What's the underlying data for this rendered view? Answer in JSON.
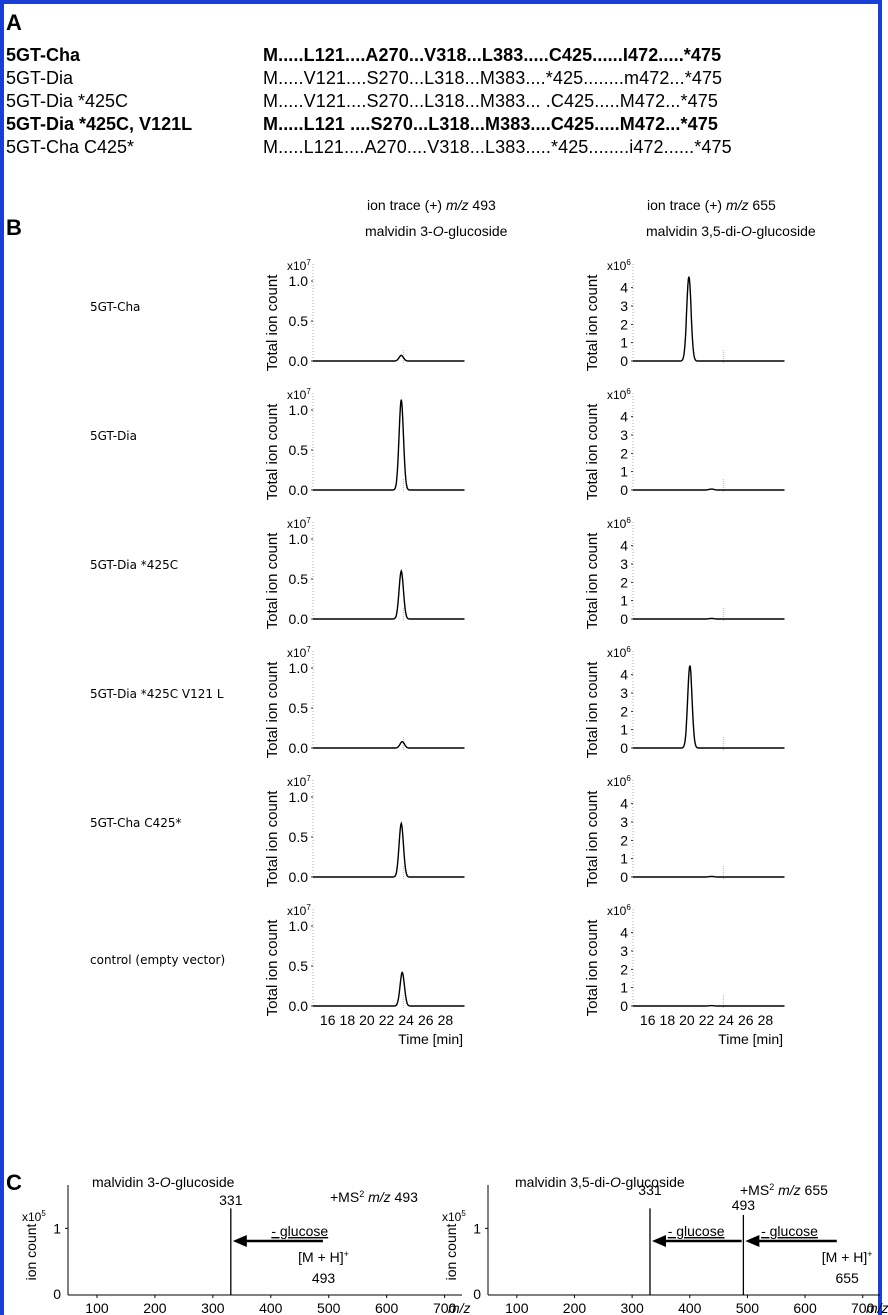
{
  "panel_labels": {
    "A": "A",
    "B": "B",
    "C": "C"
  },
  "table_A": {
    "rows": [
      {
        "name": "5GT-Cha",
        "sequence": "M.....L121....A270...V318...L383.....C425......I472.....*475",
        "bold": true
      },
      {
        "name": "5GT-Dia",
        "sequence": "M.....V121....S270...L318...M383....*425........m472...*475",
        "bold": false
      },
      {
        "name": "5GT-Dia *425C",
        "sequence": "M.....V121....S270...L318...M383... .C425.....M472...*475",
        "bold": false
      },
      {
        "name": "5GT-Dia *425C, V121L",
        "sequence": "M.....L121 ....S270...L318...M383....C425.....M472...*475",
        "bold": true
      },
      {
        "name": "5GT-Cha C425*",
        "sequence": "M.....L121....A270....V318...L383.....*425........i472......*475",
        "bold": false
      }
    ]
  },
  "panel_B": {
    "col1_header": {
      "line1": "ion trace (+) ",
      "mz": "m/z",
      "mzval": " 493",
      "line2a": "malvidin 3-",
      "O": "O",
      "line2b": "-glucoside"
    },
    "col2_header": {
      "line1": "ion trace (+) ",
      "mz": "m/z",
      "mzval": " 655",
      "line2a": "malvidin 3,5-di-",
      "O": "O",
      "line2b": "-glucoside"
    },
    "row_labels": [
      "5GT-Cha",
      "5GT-Dia",
      "5GT-Dia *425C",
      "5GT-Dia *425C V121 L",
      "5GT-Cha C425*",
      "control (empty vector)"
    ],
    "ylabel": "Total ion count",
    "xlabel": "Time [min]",
    "x_ticks": [
      "16",
      "18",
      "20",
      "22",
      "24",
      "26",
      "28"
    ],
    "left_exp": {
      "base": "x10",
      "exp": "7"
    },
    "right_exp": {
      "base": "x10",
      "exp": "6"
    },
    "left_yticks": [
      "0.0",
      "0.5",
      "1.0"
    ],
    "right_yticks": [
      "0",
      "1",
      "2",
      "3",
      "4"
    ]
  },
  "panel_C": {
    "left": {
      "title_a": "malvidin 3-",
      "title_O": "O",
      "title_b": "-glucoside",
      "ms": "+MS",
      "ms_sup": "2",
      "mz": " m/z",
      "mzval": " 493",
      "peak_label": "331",
      "arrow_label": "- glucose",
      "ion_label": "[M + H]",
      "ion_sup": "+",
      "ion_mz": "493"
    },
    "right": {
      "title_a": "malvidin 3,5-di-",
      "title_O": "O",
      "title_b": "-glucoside",
      "ms": "+MS",
      "ms_sup": "2",
      "mz": " m/z",
      "mzval": " 655",
      "peak_label_1": "331",
      "peak_label_2": "493",
      "arrow_label_1": "- glucose",
      "arrow_label_2": "- glucose",
      "ion_label": "[M + H]",
      "ion_sup": "+",
      "ion_mz": "655"
    },
    "ylabel": "ion count",
    "exp": {
      "base": "x10",
      "exp": "5"
    },
    "y_ticks": [
      "0",
      "1"
    ],
    "x_ticks": [
      "100",
      "200",
      "300",
      "400",
      "500",
      "600",
      "700"
    ],
    "x_unit": "m/z"
  },
  "chart_data": [
    {
      "type": "line",
      "panel": "B-left",
      "ylabel": "Total ion count",
      "xlabel": "Time [min]",
      "xlim": [
        14.5,
        30
      ],
      "ylim": [
        0,
        1.1
      ],
      "y_scale_factor": "x10^7",
      "series": [
        {
          "name": "5GT-Cha",
          "peak_time": 23.5,
          "peak_height": 0.07,
          "width": 0.45
        },
        {
          "name": "5GT-Dia",
          "peak_time": 23.5,
          "peak_height": 1.13,
          "width": 0.45
        },
        {
          "name": "5GT-Dia *425C",
          "peak_time": 23.5,
          "peak_height": 0.6,
          "width": 0.45
        },
        {
          "name": "5GT-Dia *425C V121 L",
          "peak_time": 23.6,
          "peak_height": 0.08,
          "width": 0.45
        },
        {
          "name": "5GT-Cha C425*",
          "peak_time": 23.5,
          "peak_height": 0.67,
          "width": 0.45
        },
        {
          "name": "control (empty vector)",
          "peak_time": 23.6,
          "peak_height": 0.42,
          "width": 0.45
        }
      ]
    },
    {
      "type": "line",
      "panel": "B-right",
      "ylabel": "Total ion count",
      "xlabel": "Time [min]",
      "xlim": [
        14.5,
        30
      ],
      "ylim": [
        0,
        4.8
      ],
      "y_scale_factor": "x10^6",
      "series": [
        {
          "name": "5GT-Cha",
          "peak_time": 20.2,
          "peak_height": 4.6,
          "width": 0.45
        },
        {
          "name": "5GT-Dia",
          "peak_time": 22.5,
          "peak_height": 0.05,
          "width": 0.5
        },
        {
          "name": "5GT-Dia *425C",
          "peak_time": 22.5,
          "peak_height": 0.03,
          "width": 0.5
        },
        {
          "name": "5GT-Dia *425C V121 L",
          "peak_time": 20.3,
          "peak_height": 4.5,
          "width": 0.45
        },
        {
          "name": "5GT-Cha C425*",
          "peak_time": 22.5,
          "peak_height": 0.03,
          "width": 0.5
        },
        {
          "name": "control (empty vector)",
          "peak_time": 22.5,
          "peak_height": 0.02,
          "width": 0.5
        }
      ]
    },
    {
      "type": "bar",
      "panel": "C-left",
      "xlabel": "m/z",
      "ylabel": "ion count",
      "xlim": [
        50,
        730
      ],
      "ylim": [
        0,
        1.5
      ],
      "y_scale_factor": "x10^5",
      "peaks": [
        {
          "mz": 331,
          "intensity": 1.3
        }
      ]
    },
    {
      "type": "bar",
      "panel": "C-right",
      "xlabel": "m/z",
      "ylabel": "ion count",
      "xlim": [
        50,
        730
      ],
      "ylim": [
        0,
        1.5
      ],
      "y_scale_factor": "x10^5",
      "peaks": [
        {
          "mz": 331,
          "intensity": 1.3
        },
        {
          "mz": 493,
          "intensity": 1.2
        }
      ]
    }
  ]
}
